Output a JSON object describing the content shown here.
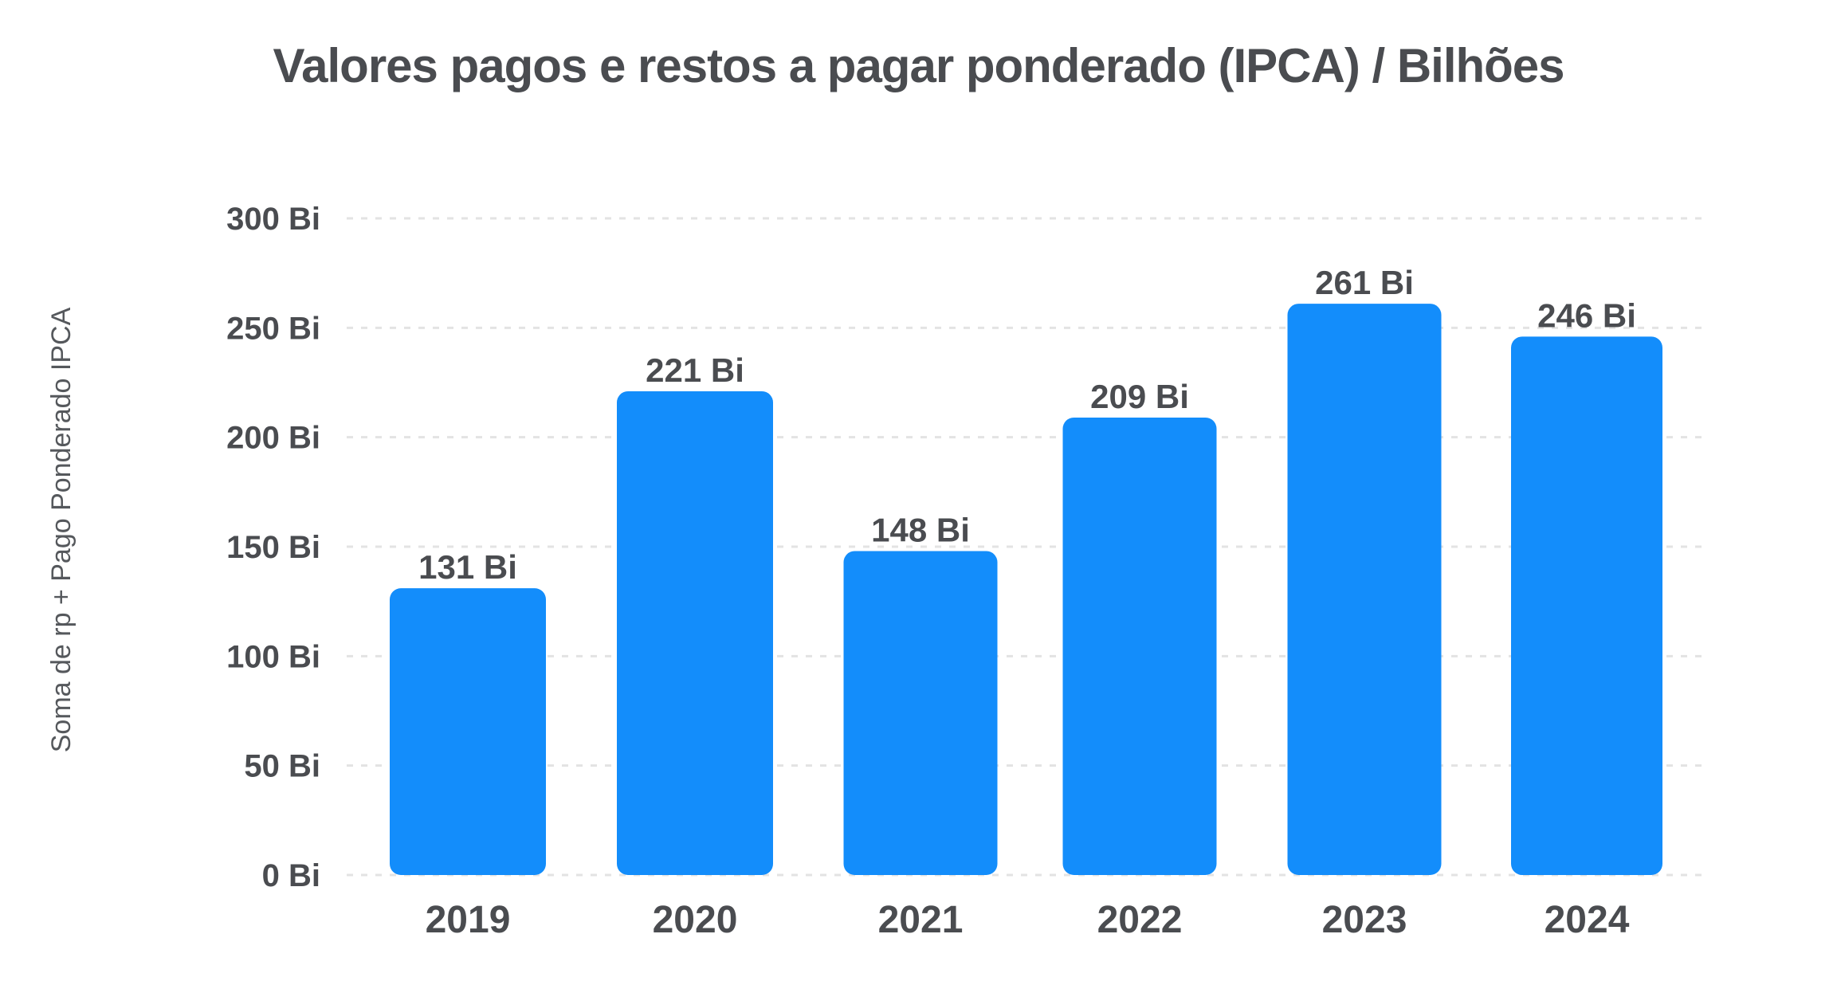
{
  "chart_data": {
    "type": "bar",
    "title": "Valores pagos e restos a pagar ponderado (IPCA) / Bilhões",
    "xlabel": "",
    "ylabel": "Soma de rp + Pago Ponderado IPCA",
    "categories": [
      "2019",
      "2020",
      "2021",
      "2022",
      "2023",
      "2024"
    ],
    "values": [
      131,
      221,
      148,
      209,
      261,
      246
    ],
    "data_labels": [
      "131 Bi",
      "221 Bi",
      "148 Bi",
      "209 Bi",
      "261 Bi",
      "246 Bi"
    ],
    "ylim": [
      0,
      300
    ],
    "yticks": [
      0,
      50,
      100,
      150,
      200,
      250,
      300
    ],
    "ytick_labels": [
      "0 Bi",
      "50 Bi",
      "100 Bi",
      "150 Bi",
      "200 Bi",
      "250 Bi",
      "300 Bi"
    ],
    "grid": true,
    "legend": "none",
    "colors": {
      "bar": "#138dfb",
      "text": "#4a4c50",
      "grid": "#e3e3e3"
    }
  }
}
